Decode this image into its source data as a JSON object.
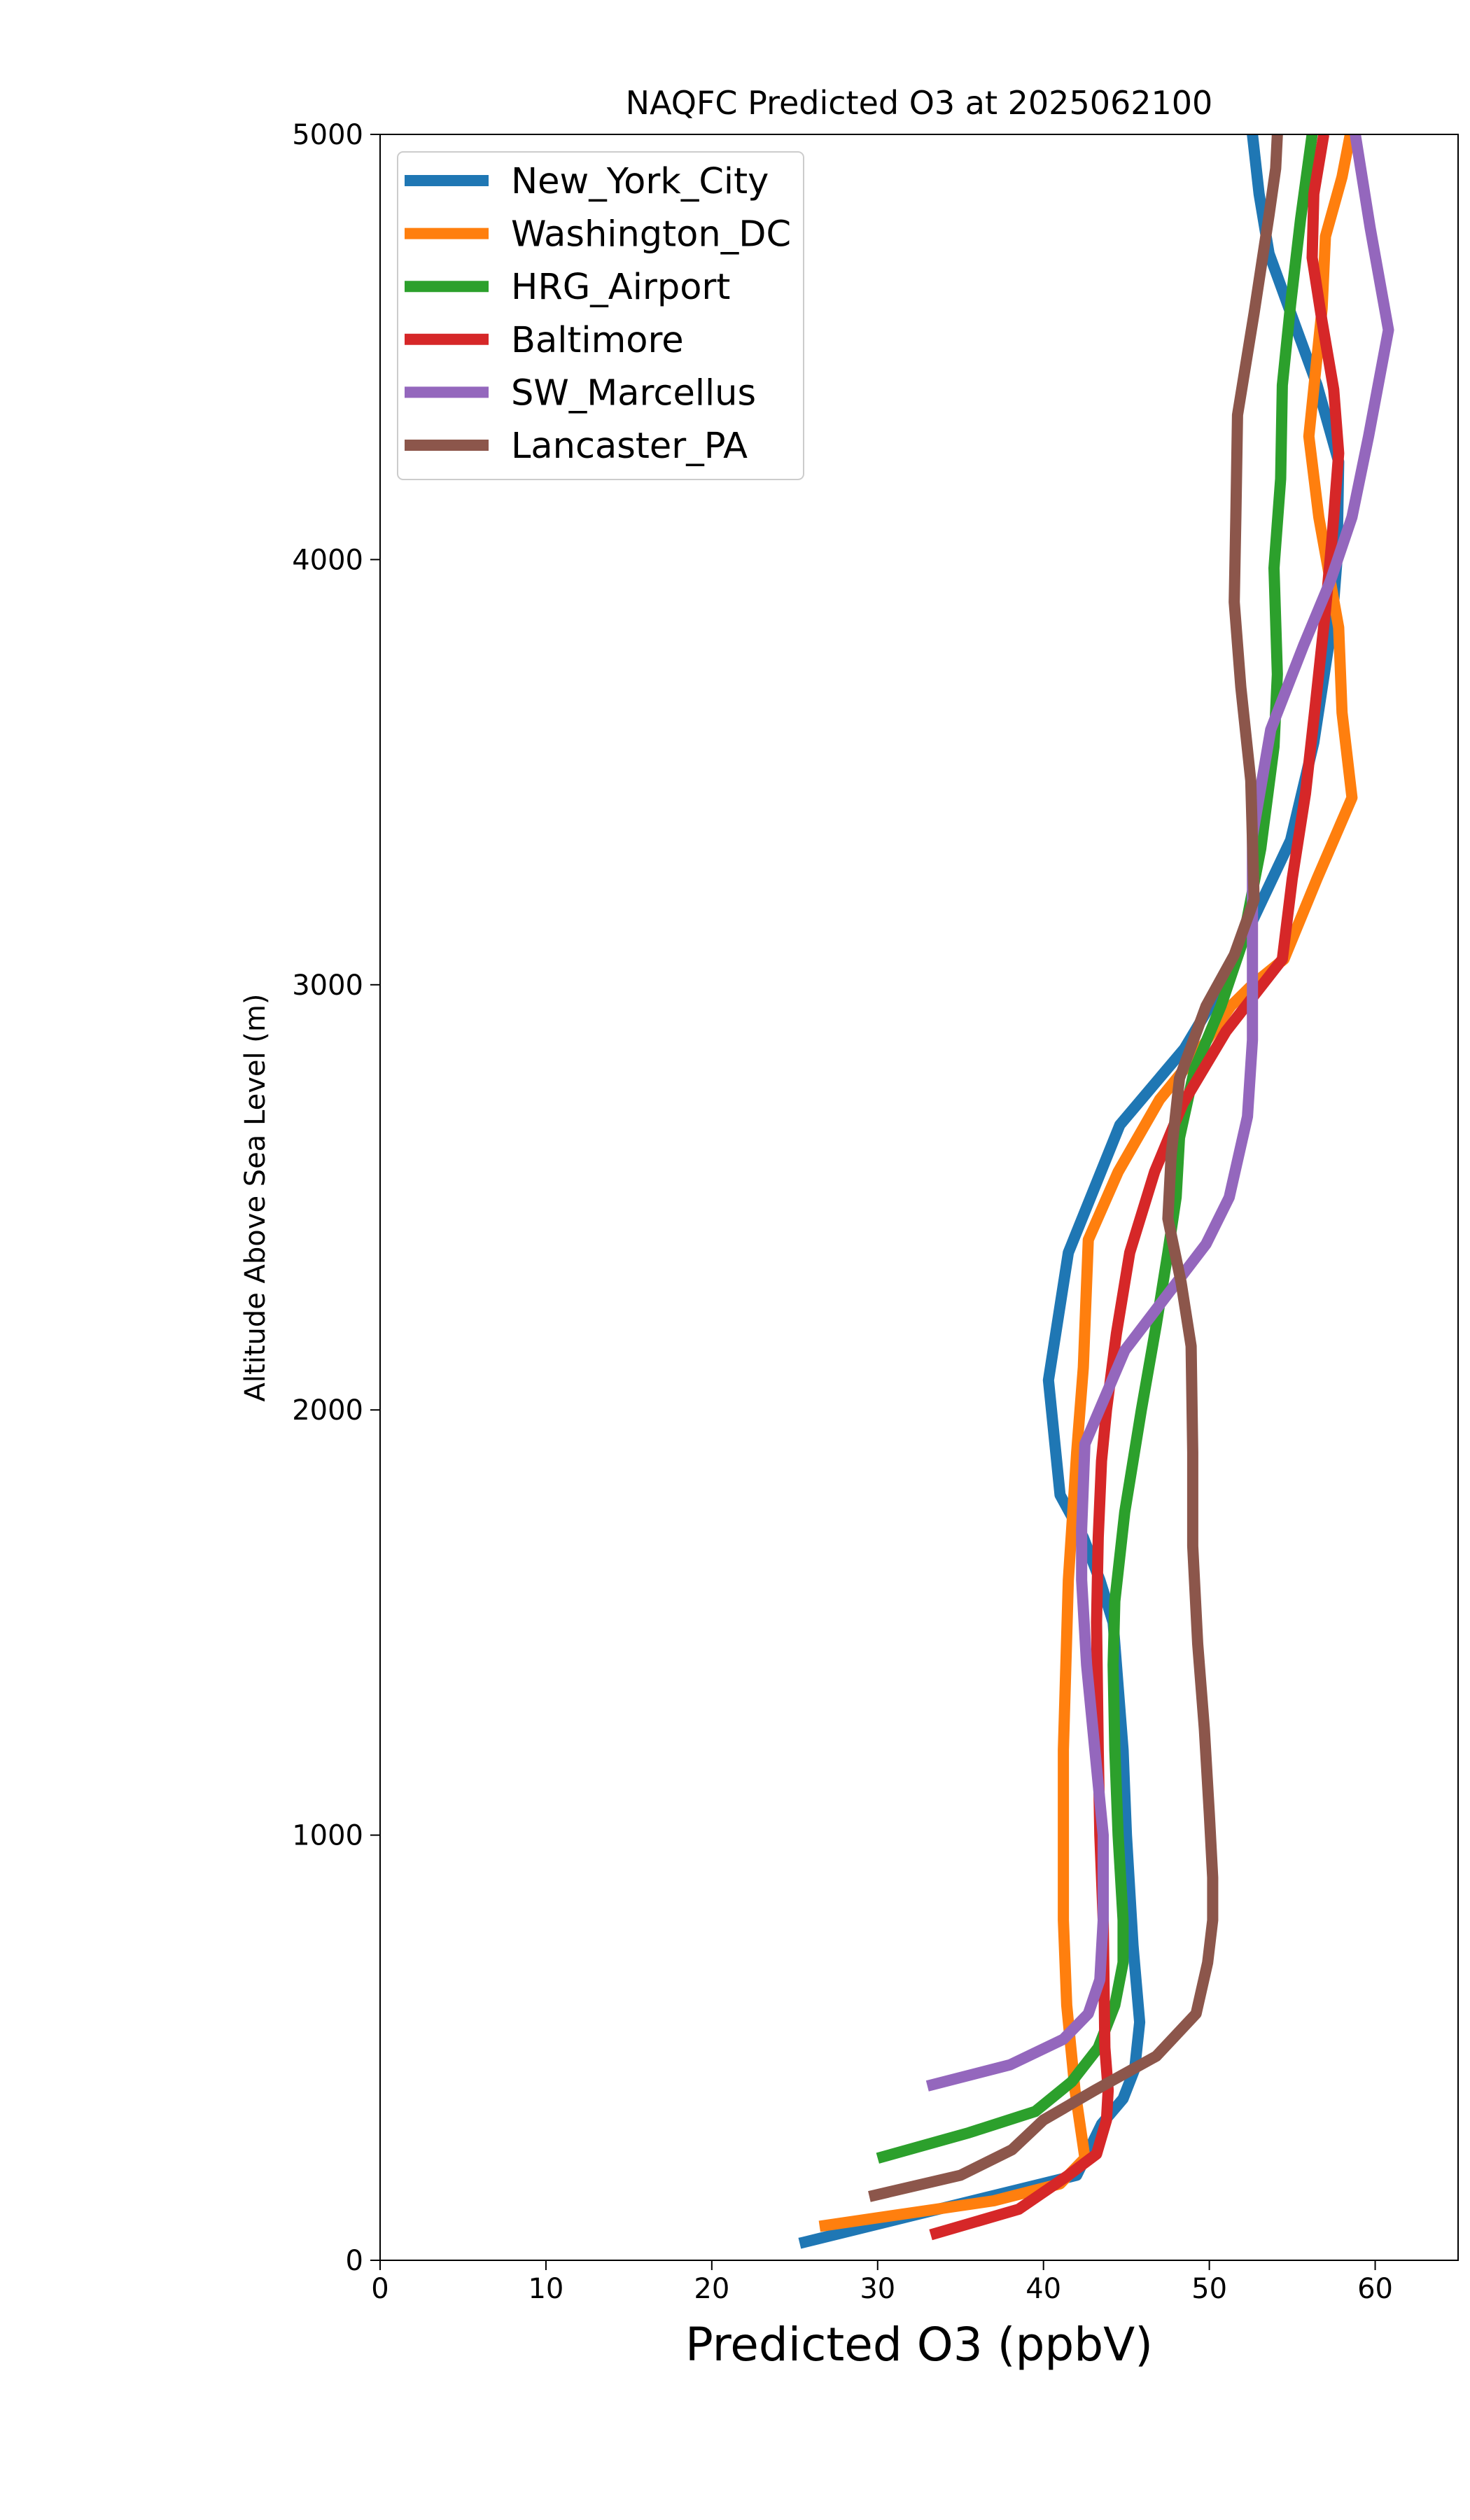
{
  "chart_data": {
    "type": "line",
    "title": "NAQFC Predicted O3 at 2025062100",
    "xlabel": "Predicted O3 (ppbV)",
    "ylabel": "Altitude Above Sea Level (m)",
    "xlim": [
      0,
      65
    ],
    "ylim": [
      0,
      5000
    ],
    "xticks": [
      "0",
      "10",
      "20",
      "30",
      "40",
      "50",
      "60"
    ],
    "yticks": [
      "0",
      "1000",
      "2000",
      "3000",
      "4000",
      "5000"
    ],
    "grid": false,
    "legend_position": "upper-left",
    "series": [
      {
        "name": "New_York_City",
        "color": "#1f77b4",
        "points": [
          [
            25.3,
            40
          ],
          [
            42.0,
            200
          ],
          [
            43.5,
            320
          ],
          [
            44.8,
            380
          ],
          [
            45.5,
            450
          ],
          [
            45.8,
            560
          ],
          [
            45.4,
            740
          ],
          [
            45.0,
            1000
          ],
          [
            44.8,
            1200
          ],
          [
            44.2,
            1500
          ],
          [
            43.4,
            1600
          ],
          [
            42.4,
            1700
          ],
          [
            41.0,
            1800
          ],
          [
            40.3,
            2070
          ],
          [
            41.5,
            2370
          ],
          [
            44.6,
            2670
          ],
          [
            48.5,
            2850
          ],
          [
            50.8,
            3000
          ],
          [
            52.6,
            3150
          ],
          [
            54.9,
            3340
          ],
          [
            56.3,
            3570
          ],
          [
            57.4,
            3850
          ],
          [
            57.7,
            4000
          ],
          [
            57.8,
            4230
          ],
          [
            56.5,
            4410
          ],
          [
            55.0,
            4570
          ],
          [
            53.6,
            4720
          ],
          [
            53.0,
            4860
          ],
          [
            52.6,
            5000
          ]
        ]
      },
      {
        "name": "Washington_DC",
        "color": "#ff7f0e",
        "points": [
          [
            26.5,
            80
          ],
          [
            37.0,
            140
          ],
          [
            41.0,
            180
          ],
          [
            42.5,
            240
          ],
          [
            41.9,
            400
          ],
          [
            41.4,
            600
          ],
          [
            41.2,
            800
          ],
          [
            41.2,
            1200
          ],
          [
            41.5,
            1600
          ],
          [
            42.0,
            1900
          ],
          [
            42.4,
            2100
          ],
          [
            42.7,
            2400
          ],
          [
            44.5,
            2560
          ],
          [
            47.0,
            2730
          ],
          [
            49.5,
            2850
          ],
          [
            51.3,
            2950
          ],
          [
            52.6,
            3000
          ],
          [
            54.5,
            3060
          ],
          [
            56.5,
            3250
          ],
          [
            58.6,
            3440
          ],
          [
            58.0,
            3640
          ],
          [
            57.8,
            3840
          ],
          [
            56.6,
            4100
          ],
          [
            56.0,
            4290
          ],
          [
            56.4,
            4440
          ],
          [
            56.8,
            4590
          ],
          [
            57.0,
            4760
          ],
          [
            58.0,
            4900
          ],
          [
            58.5,
            5000
          ]
        ]
      },
      {
        "name": "HRG_Airport",
        "color": "#2ca02c",
        "points": [
          [
            30.0,
            240
          ],
          [
            35.5,
            300
          ],
          [
            39.5,
            350
          ],
          [
            41.7,
            420
          ],
          [
            43.3,
            500
          ],
          [
            44.3,
            600
          ],
          [
            44.8,
            700
          ],
          [
            44.8,
            800
          ],
          [
            44.5,
            1000
          ],
          [
            44.3,
            1200
          ],
          [
            44.2,
            1400
          ],
          [
            44.3,
            1550
          ],
          [
            44.9,
            1760
          ],
          [
            45.9,
            2000
          ],
          [
            46.8,
            2200
          ],
          [
            47.5,
            2370
          ],
          [
            48.0,
            2500
          ],
          [
            48.2,
            2640
          ],
          [
            49.1,
            2800
          ],
          [
            50.7,
            2950
          ],
          [
            52.0,
            3100
          ],
          [
            53.1,
            3320
          ],
          [
            53.9,
            3560
          ],
          [
            54.1,
            3730
          ],
          [
            53.9,
            3980
          ],
          [
            54.3,
            4190
          ],
          [
            54.4,
            4410
          ],
          [
            54.9,
            4600
          ],
          [
            55.5,
            4800
          ],
          [
            56.2,
            5000
          ]
        ]
      },
      {
        "name": "Baltimore",
        "color": "#d62728",
        "points": [
          [
            33.2,
            60
          ],
          [
            38.5,
            120
          ],
          [
            41.5,
            200
          ],
          [
            43.2,
            250
          ],
          [
            43.8,
            330
          ],
          [
            43.9,
            400
          ],
          [
            43.7,
            500
          ],
          [
            43.6,
            800
          ],
          [
            43.4,
            1000
          ],
          [
            43.3,
            1200
          ],
          [
            43.2,
            1500
          ],
          [
            43.3,
            1700
          ],
          [
            43.5,
            1880
          ],
          [
            43.8,
            2000
          ],
          [
            44.4,
            2180
          ],
          [
            45.2,
            2370
          ],
          [
            46.7,
            2560
          ],
          [
            48.4,
            2720
          ],
          [
            51.0,
            2890
          ],
          [
            54.4,
            3060
          ],
          [
            55.0,
            3250
          ],
          [
            55.8,
            3450
          ],
          [
            56.4,
            3660
          ],
          [
            57.0,
            3880
          ],
          [
            57.4,
            4050
          ],
          [
            57.8,
            4250
          ],
          [
            57.5,
            4400
          ],
          [
            56.8,
            4560
          ],
          [
            56.2,
            4710
          ],
          [
            56.3,
            4860
          ],
          [
            56.9,
            5000
          ]
        ]
      },
      {
        "name": "SW_Marcellus",
        "color": "#9467bd",
        "points": [
          [
            33.0,
            410
          ],
          [
            38.0,
            460
          ],
          [
            41.2,
            520
          ],
          [
            42.7,
            580
          ],
          [
            43.4,
            660
          ],
          [
            43.6,
            800
          ],
          [
            43.6,
            1000
          ],
          [
            43.1,
            1200
          ],
          [
            42.6,
            1400
          ],
          [
            42.3,
            1600
          ],
          [
            42.3,
            1720
          ],
          [
            42.5,
            1920
          ],
          [
            44.9,
            2140
          ],
          [
            49.8,
            2390
          ],
          [
            51.2,
            2500
          ],
          [
            52.3,
            2690
          ],
          [
            52.6,
            2870
          ],
          [
            52.6,
            3150
          ],
          [
            52.6,
            3350
          ],
          [
            53.7,
            3600
          ],
          [
            55.7,
            3800
          ],
          [
            57.3,
            3950
          ],
          [
            58.6,
            4100
          ],
          [
            59.6,
            4290
          ],
          [
            60.8,
            4540
          ],
          [
            59.7,
            4780
          ],
          [
            58.8,
            5000
          ]
        ]
      },
      {
        "name": "Lancaster_PA",
        "color": "#8c564b",
        "points": [
          [
            29.5,
            150
          ],
          [
            35.0,
            200
          ],
          [
            38.1,
            260
          ],
          [
            40.0,
            330
          ],
          [
            43.1,
            400
          ],
          [
            46.8,
            480
          ],
          [
            49.2,
            580
          ],
          [
            49.9,
            700
          ],
          [
            50.2,
            800
          ],
          [
            50.2,
            900
          ],
          [
            50.0,
            1050
          ],
          [
            49.7,
            1250
          ],
          [
            49.3,
            1450
          ],
          [
            49.0,
            1680
          ],
          [
            49.0,
            1900
          ],
          [
            48.9,
            2150
          ],
          [
            48.3,
            2300
          ],
          [
            47.5,
            2450
          ],
          [
            47.7,
            2600
          ],
          [
            48.2,
            2780
          ],
          [
            49.8,
            2950
          ],
          [
            51.5,
            3070
          ],
          [
            52.7,
            3200
          ],
          [
            52.5,
            3480
          ],
          [
            51.9,
            3700
          ],
          [
            51.5,
            3900
          ],
          [
            51.6,
            4100
          ],
          [
            51.7,
            4340
          ],
          [
            52.7,
            4580
          ],
          [
            53.6,
            4810
          ],
          [
            54.0,
            4920
          ],
          [
            54.1,
            5000
          ]
        ]
      }
    ]
  }
}
